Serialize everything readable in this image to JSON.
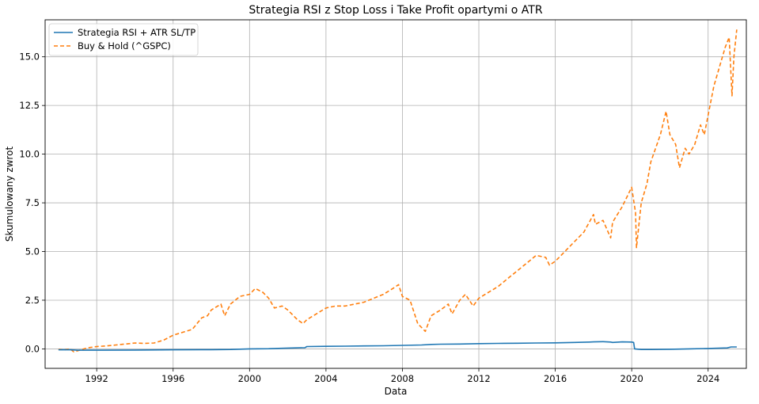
{
  "chart_data": {
    "type": "line",
    "title": "Strategia RSI z Stop Loss i Take Profit opartymi o ATR",
    "xlabel": "Data",
    "ylabel": "Skumulowany zwrot",
    "xlim": [
      1989.3,
      2026.0
    ],
    "ylim": [
      -1.0,
      16.9
    ],
    "x_ticks": [
      1992,
      1996,
      2000,
      2004,
      2008,
      2012,
      2016,
      2020,
      2024
    ],
    "y_ticks": [
      0.0,
      2.5,
      5.0,
      7.5,
      10.0,
      12.5,
      15.0
    ],
    "y_tick_labels": [
      "0.0",
      "2.5",
      "5.0",
      "7.5",
      "10.0",
      "12.5",
      "15.0"
    ],
    "grid": true,
    "legend_position": "upper-left",
    "series": [
      {
        "name": "Strategia RSI + ATR SL/TP",
        "color": "#1f77b4",
        "style": "solid",
        "x": [
          1990.0,
          1990.6,
          1991.0,
          1992.0,
          1994.0,
          1996.0,
          1998.0,
          1999.0,
          2000.0,
          2001.0,
          2002.0,
          2002.9,
          2003.0,
          2004.0,
          2005.0,
          2006.0,
          2007.0,
          2008.0,
          2009.0,
          2009.5,
          2010.0,
          2011.0,
          2012.0,
          2013.0,
          2014.0,
          2015.0,
          2016.0,
          2017.0,
          2017.8,
          2018.0,
          2018.5,
          2018.9,
          2019.0,
          2019.5,
          2020.0,
          2020.1,
          2020.15,
          2020.5,
          2021.0,
          2022.0,
          2023.0,
          2024.0,
          2025.0,
          2025.2,
          2025.5
        ],
        "values": [
          -0.05,
          -0.05,
          -0.07,
          -0.07,
          -0.06,
          -0.05,
          -0.04,
          -0.03,
          0.0,
          0.01,
          0.04,
          0.06,
          0.12,
          0.13,
          0.14,
          0.15,
          0.16,
          0.18,
          0.2,
          0.23,
          0.24,
          0.25,
          0.27,
          0.28,
          0.29,
          0.3,
          0.31,
          0.33,
          0.35,
          0.36,
          0.37,
          0.35,
          0.33,
          0.36,
          0.35,
          0.33,
          0.0,
          -0.03,
          -0.03,
          -0.02,
          0.0,
          0.02,
          0.05,
          0.1,
          0.1
        ]
      },
      {
        "name": "Buy & Hold (^GSPC)",
        "color": "#ff7f0e",
        "style": "dashed",
        "x": [
          1990.0,
          1990.3,
          1990.6,
          1990.8,
          1991.0,
          1991.5,
          1992.0,
          1992.5,
          1993.0,
          1993.5,
          1994.0,
          1994.5,
          1995.0,
          1995.5,
          1996.0,
          1996.5,
          1997.0,
          1997.5,
          1997.8,
          1998.0,
          1998.5,
          1998.7,
          1999.0,
          1999.5,
          2000.0,
          2000.3,
          2000.7,
          2001.0,
          2001.3,
          2001.7,
          2002.0,
          2002.5,
          2002.8,
          2003.0,
          2003.5,
          2004.0,
          2004.5,
          2005.0,
          2005.5,
          2006.0,
          2006.5,
          2007.0,
          2007.5,
          2007.8,
          2008.0,
          2008.4,
          2008.8,
          2009.2,
          2009.5,
          2010.0,
          2010.4,
          2010.6,
          2011.0,
          2011.3,
          2011.7,
          2012.0,
          2012.5,
          2013.0,
          2013.5,
          2014.0,
          2014.5,
          2015.0,
          2015.5,
          2015.7,
          2016.0,
          2016.5,
          2017.0,
          2017.5,
          2018.0,
          2018.1,
          2018.5,
          2018.9,
          2019.0,
          2019.5,
          2020.0,
          2020.2,
          2020.25,
          2020.5,
          2020.8,
          2021.0,
          2021.5,
          2021.8,
          2022.0,
          2022.3,
          2022.5,
          2022.8,
          2023.0,
          2023.3,
          2023.6,
          2023.8,
          2024.0,
          2024.3,
          2024.6,
          2024.9,
          2025.1,
          2025.25,
          2025.35,
          2025.5
        ],
        "values": [
          -0.02,
          -0.05,
          0.0,
          -0.15,
          -0.1,
          0.05,
          0.12,
          0.15,
          0.2,
          0.25,
          0.3,
          0.28,
          0.3,
          0.45,
          0.7,
          0.85,
          1.0,
          1.6,
          1.7,
          2.0,
          2.3,
          1.7,
          2.3,
          2.7,
          2.8,
          3.1,
          2.9,
          2.6,
          2.1,
          2.2,
          2.0,
          1.5,
          1.3,
          1.5,
          1.8,
          2.1,
          2.2,
          2.2,
          2.3,
          2.4,
          2.6,
          2.8,
          3.1,
          3.3,
          2.7,
          2.5,
          1.3,
          0.9,
          1.7,
          2.0,
          2.3,
          1.8,
          2.5,
          2.8,
          2.2,
          2.6,
          2.9,
          3.2,
          3.6,
          4.0,
          4.4,
          4.8,
          4.7,
          4.3,
          4.5,
          5.0,
          5.5,
          6.0,
          6.9,
          6.4,
          6.6,
          5.7,
          6.5,
          7.3,
          8.3,
          7.0,
          5.2,
          7.5,
          8.5,
          9.6,
          11.0,
          12.2,
          11.0,
          10.5,
          9.3,
          10.3,
          10.0,
          10.5,
          11.5,
          11.0,
          12.0,
          13.5,
          14.5,
          15.5,
          16.0,
          13.0,
          15.0,
          16.4
        ]
      }
    ]
  }
}
